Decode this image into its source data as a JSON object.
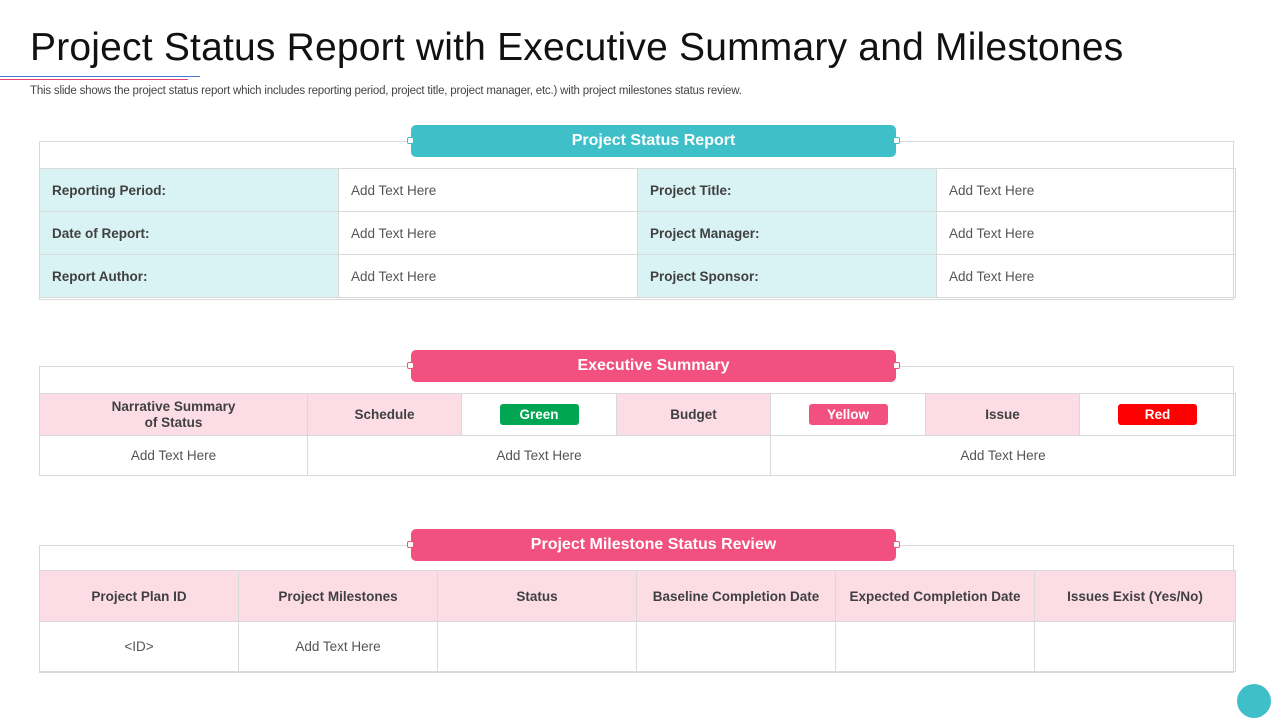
{
  "header": {
    "title": "Project Status Report with Executive Summary and Milestones",
    "subtitle": "This slide shows the project status report which includes reporting period, project title, project manager, etc.) with project milestones status review."
  },
  "status_report": {
    "heading": "Project Status Report",
    "rows": [
      {
        "label1": "Reporting Period:",
        "value1": "Add Text Here",
        "label2": "Project Title:",
        "value2": "Add Text Here"
      },
      {
        "label1": "Date of Report:",
        "value1": "Add Text Here",
        "label2": "Project Manager:",
        "value2": "Add Text Here"
      },
      {
        "label1": "Report Author:",
        "value1": "Add Text Here",
        "label2": "Project Sponsor:",
        "value2": "Add Text Here"
      }
    ]
  },
  "executive_summary": {
    "heading": "Executive Summary",
    "narrative_label_line1": "Narrative Summary",
    "narrative_label_line2": "of Status",
    "schedule_label": "Schedule",
    "schedule_status": "Green",
    "budget_label": "Budget",
    "budget_status": "Yellow",
    "issue_label": "Issue",
    "issue_status": "Red",
    "narrative_text": "Add Text Here",
    "schedule_text": "Add Text Here",
    "issue_text": "Add Text Here",
    "colors": {
      "green": "#00a651",
      "yellow": "#f2507e",
      "red": "#ff0000"
    }
  },
  "milestones": {
    "heading": "Project Milestone Status Review",
    "columns": [
      "Project Plan ID",
      "Project Milestones",
      "Status",
      "Baseline Completion Date",
      "Expected Completion Date",
      "Issues  Exist (Yes/No)"
    ],
    "rows": [
      [
        "<ID>",
        "Add Text Here",
        "",
        "",
        "",
        ""
      ]
    ]
  },
  "colors": {
    "teal": "#3fbfc8",
    "pink": "#f2507e",
    "light_teal": "#d9f2f4",
    "light_pink": "#fcdde6"
  }
}
